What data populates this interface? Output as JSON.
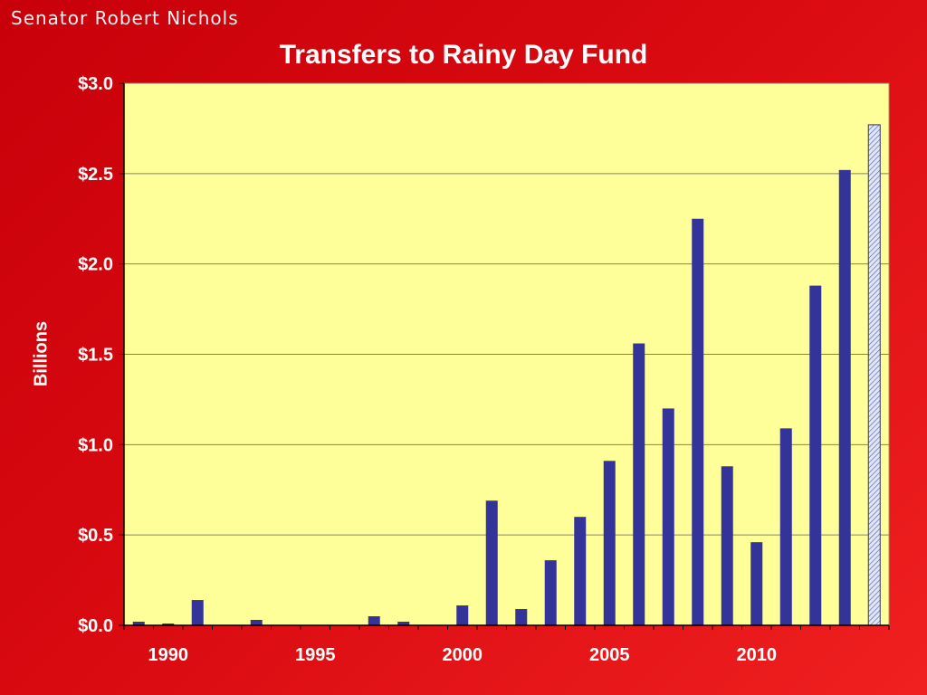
{
  "header": {
    "presenter": "Senator Robert Nichols"
  },
  "colors": {
    "plot_background": "#ffff99",
    "bar": "#333399",
    "projected_bar": "#c8d2ee",
    "gridline": "#808080",
    "text": "#ffffff"
  },
  "chart_data": {
    "type": "bar",
    "title": "Transfers to Rainy Day Fund",
    "xlabel": "",
    "ylabel": "Billions",
    "ylim": [
      0,
      3
    ],
    "yticks": [
      "$0.0",
      "$0.5",
      "$1.0",
      "$1.5",
      "$2.0",
      "$2.5",
      "$3.0"
    ],
    "ytick_values": [
      0,
      0.5,
      1.0,
      1.5,
      2.0,
      2.5,
      3.0
    ],
    "xtick_labels": [
      "1990",
      "1995",
      "2000",
      "2005",
      "2010"
    ],
    "xtick_years": [
      1990,
      1995,
      2000,
      2005,
      2010
    ],
    "categories": [
      1989,
      1990,
      1991,
      1992,
      1993,
      1994,
      1995,
      1996,
      1997,
      1998,
      1999,
      2000,
      2001,
      2002,
      2003,
      2004,
      2005,
      2006,
      2007,
      2008,
      2009,
      2010,
      2011,
      2012,
      2013,
      2014
    ],
    "values": [
      0.02,
      0.01,
      0.14,
      0,
      0.03,
      0,
      0,
      0,
      0.05,
      0.02,
      0,
      0.11,
      0.69,
      0.09,
      0.36,
      0.6,
      0.91,
      1.56,
      1.2,
      2.25,
      0.88,
      0.46,
      1.09,
      1.88,
      2.52,
      2.77
    ],
    "projected": [
      false,
      false,
      false,
      false,
      false,
      false,
      false,
      false,
      false,
      false,
      false,
      false,
      false,
      false,
      false,
      false,
      false,
      false,
      false,
      false,
      false,
      false,
      false,
      false,
      false,
      true
    ],
    "grid": true
  }
}
